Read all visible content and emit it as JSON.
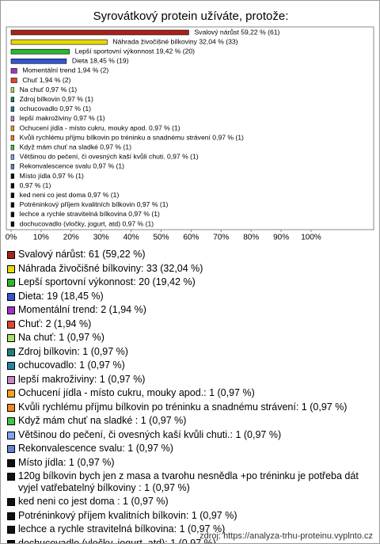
{
  "chart_data": {
    "type": "bar",
    "orientation": "horizontal",
    "title": "Syrovátkový protein užíváte, protože:",
    "values": [
      59.22,
      32.04,
      19.42,
      18.45,
      1.94,
      1.94,
      0.97,
      0.97,
      0.97,
      0.97,
      0.97,
      0.97,
      0.97,
      0.97,
      0.97,
      0.97,
      0.97,
      0.97,
      0.97,
      0.97,
      0.97
    ],
    "value_labels": [
      "Svalový nárůst 59,22 % (61)",
      "Náhrada živočišné bílkoviny 32,04 % (33)",
      "Lepší sportovní výkonnost 19,42 % (20)",
      "Dieta 18,45 % (19)",
      "Momentální trend 1,94 % (2)",
      "Chuť 1,94 % (2)",
      "Na chuť 0,97 % (1)",
      "Zdroj bílkovin 0,97 % (1)",
      "ochucovadlo 0,97 % (1)",
      "lepší makroživiny 0,97 % (1)",
      "Ochucení jídla - místo cukru, mouky apod. 0,97 % (1)",
      "Kvůli rychlému příjmu bílkovin po tréninku a snadnému strávení 0,97 % (1)",
      "Když mám chuť na sladké  0,97 % (1)",
      "Většinou do pečení, či ovesných kaší kvůli chuti. 0,97 % (1)",
      "Rekonvalescence svalu 0,97 % (1)",
      "Místo jídla 0,97 % (1)",
      "0,97 % (1)",
      "ked neni co jest doma  0,97 % (1)",
      "Potréninkový příjem kvalitních bílkovin 0,97 % (1)",
      "lechce a rychle stravitelná bílkovina 0,97 % (1)",
      "dochucovadlo (vločky, jogurt, atd) 0,97 % (1)"
    ],
    "legend_labels": [
      "Svalový nárůst: 61 (59,22 %)",
      "Náhrada živočišné bílkoviny: 33 (32,04 %)",
      "Lepší sportovní výkonnost: 20 (19,42 %)",
      "Dieta: 19 (18,45 %)",
      "Momentální trend: 2 (1,94 %)",
      "Chuť: 2 (1,94 %)",
      "Na chuť: 1 (0,97 %)",
      "Zdroj bílkovin: 1 (0,97 %)",
      "ochucovadlo: 1 (0,97 %)",
      "lepší makroživiny: 1 (0,97 %)",
      "Ochucení jídla - místo cukru, mouky apod.: 1 (0,97 %)",
      "Kvůli rychlému příjmu bílkovin po tréninku a snadnému strávení: 1 (0,97 %)",
      "Když mám chuť na sladké : 1 (0,97 %)",
      "Většinou do pečení, či ovesných kaší kvůli chuti.: 1 (0,97 %)",
      "Rekonvalescence svalu: 1 (0,97 %)",
      "Místo jídla: 1 (0,97 %)",
      "120g bílkovin bych jen z masa a tvarohu nesnědla +po tréninku je potřeba dát vyjel vatřebatelný bílkoviny : 1 (0,97 %)",
      "ked neni co jest doma : 1 (0,97 %)",
      "Potréninkový příjem kvalitních bílkovin: 1 (0,97 %)",
      "lechce a rychle stravitelná bílkovina: 1 (0,97 %)",
      "dochucovadlo (vločky, jogurt, atd): 1 (0,97 %)"
    ],
    "colors": [
      "#a8231b",
      "#e8d80a",
      "#2fb52f",
      "#3555d0",
      "#a232c4",
      "#e0452e",
      "#a6e06a",
      "#22807a",
      "#2684a3",
      "#c586c6",
      "#f0a422",
      "#ef8622",
      "#45c445",
      "#82a4ef",
      "#6482d0",
      "#111111",
      "#111111",
      "#111111",
      "#111111",
      "#111111",
      "#111111"
    ],
    "xlim": [
      0,
      100
    ],
    "xticks": [
      {
        "value": 0,
        "label": "0%"
      },
      {
        "value": 10,
        "label": "10%"
      },
      {
        "value": 20,
        "label": "20%"
      },
      {
        "value": 30,
        "label": "30%"
      },
      {
        "value": 40,
        "label": "40%"
      },
      {
        "value": 50,
        "label": "50%"
      },
      {
        "value": 60,
        "label": "60%"
      },
      {
        "value": 70,
        "label": "70%"
      },
      {
        "value": 80,
        "label": "80%"
      },
      {
        "value": 90,
        "label": "90%"
      },
      {
        "value": 100,
        "label": "100%"
      }
    ],
    "grid": false,
    "source": "zdroj: https://analyza-trhu-proteinu.vyplnto.cz"
  }
}
